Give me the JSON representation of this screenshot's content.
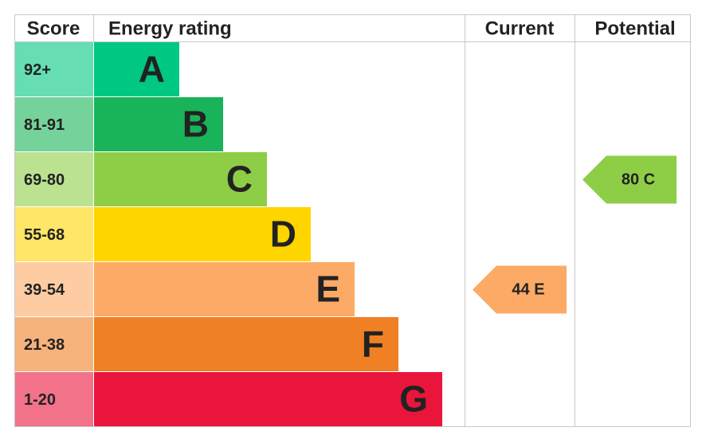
{
  "chart_data": {
    "type": "epc",
    "headers": [
      "Score",
      "Energy rating",
      "Current",
      "Potential"
    ],
    "bands": [
      {
        "range": "92+",
        "letter": "A",
        "color": "#00c781"
      },
      {
        "range": "81-91",
        "letter": "B",
        "color": "#19b459"
      },
      {
        "range": "69-80",
        "letter": "C",
        "color": "#8dce46"
      },
      {
        "range": "55-68",
        "letter": "D",
        "color": "#ffd500"
      },
      {
        "range": "39-54",
        "letter": "E",
        "color": "#fcaa65"
      },
      {
        "range": "21-38",
        "letter": "F",
        "color": "#ef8023"
      },
      {
        "range": "1-20",
        "letter": "G",
        "color": "#e9153b"
      }
    ],
    "current": {
      "value": 44,
      "rating": "E"
    },
    "potential": {
      "value": 80,
      "rating": "C"
    }
  }
}
